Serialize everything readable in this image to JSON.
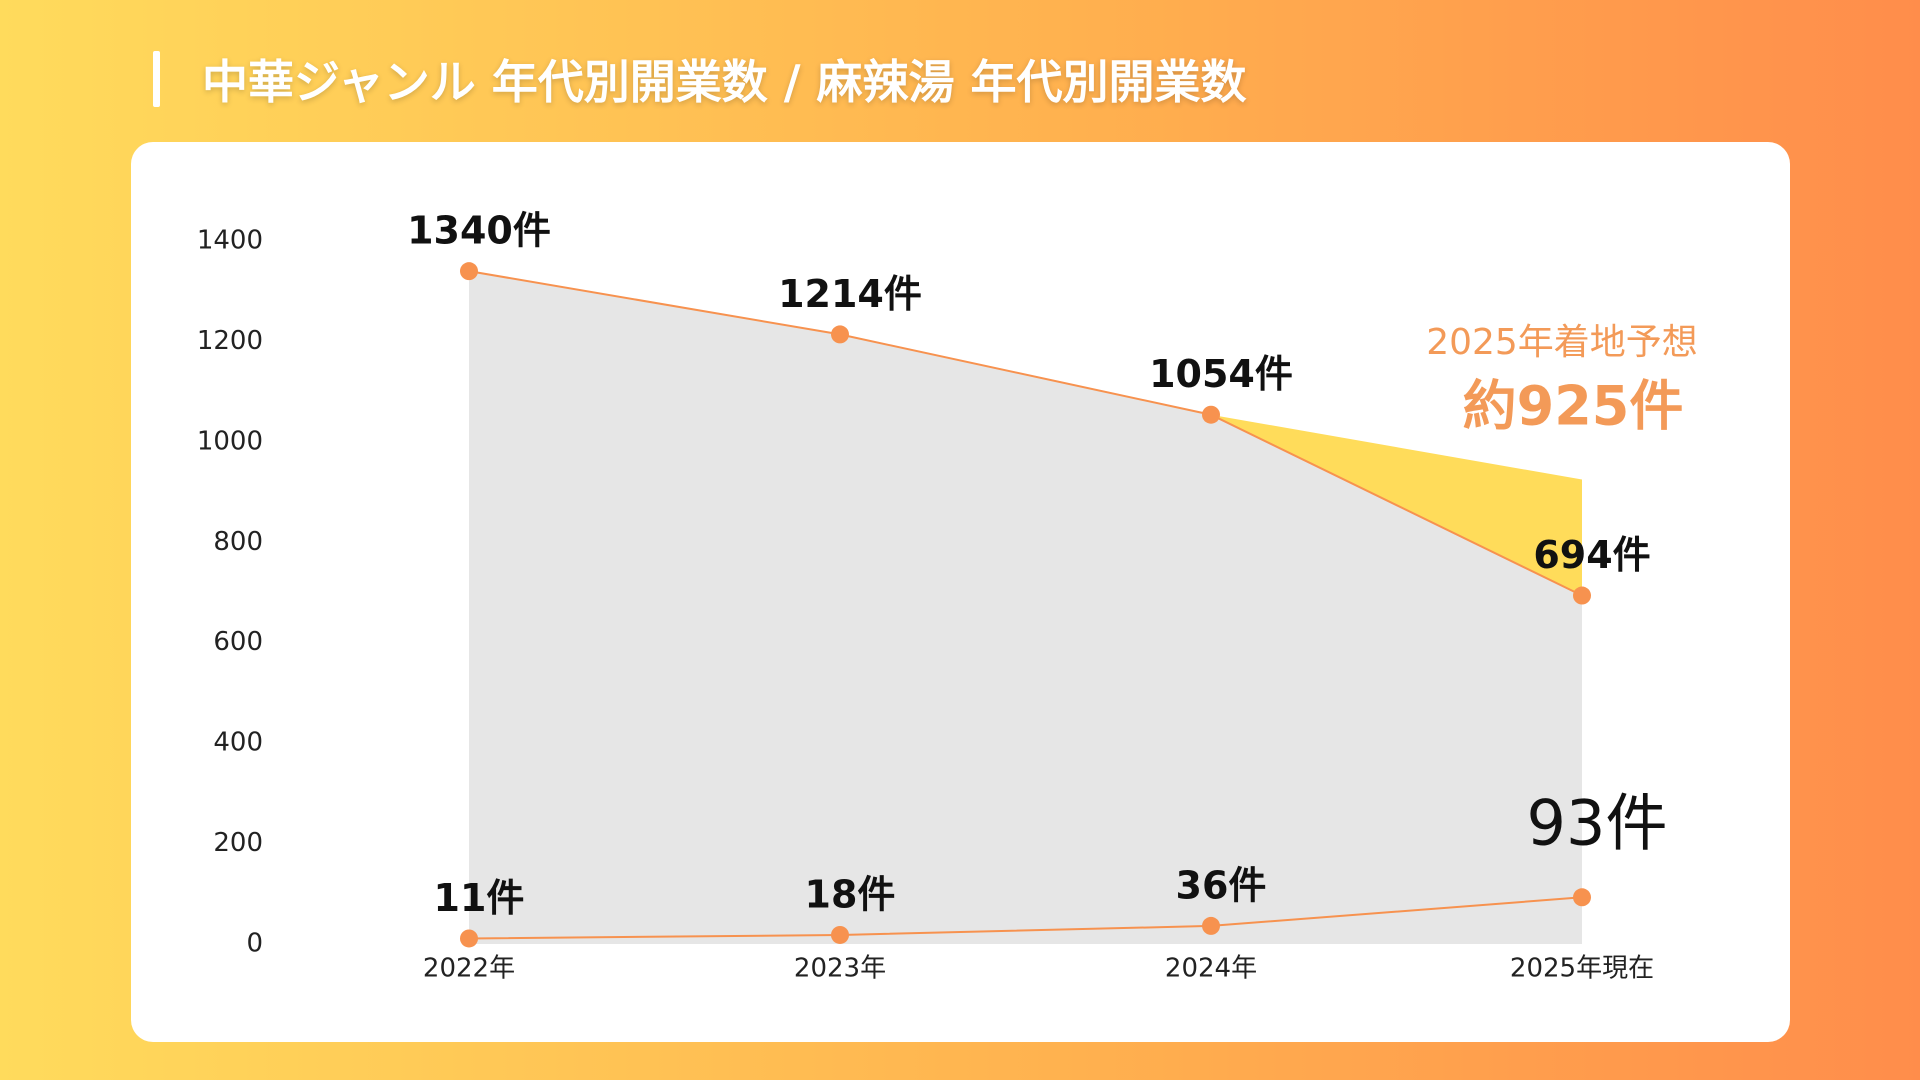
{
  "chart_data": {
    "type": "line",
    "title": "中華ジャンル 年代別開業数 / 麻辣湯 年代別開業数",
    "categories": [
      "2022年",
      "2023年",
      "2024年",
      "2025年現在"
    ],
    "ylim": [
      0,
      1400
    ],
    "yticks": [
      0,
      200,
      400,
      600,
      800,
      1000,
      1200,
      1400
    ],
    "grid": false,
    "area_color": "#e6e6e6",
    "series": [
      {
        "name": "中華ジャンル",
        "color": "#f7924f",
        "values": [
          1340,
          1214,
          1054,
          694
        ],
        "value_labels": [
          "1340件",
          "1214件",
          "1054件",
          "694件"
        ]
      },
      {
        "name": "麻辣湯",
        "color": "#f7924f",
        "values": [
          11,
          18,
          36,
          93
        ],
        "value_labels": [
          "11件",
          "18件",
          "36件",
          "93件"
        ],
        "last_label_color": "#ee3535"
      }
    ],
    "forecast": {
      "color": "#ffdc5a",
      "values": [
        null,
        null,
        1054,
        925
      ],
      "title": "2025年着地予想",
      "value_labels": [
        null,
        null,
        null,
        "約925件"
      ],
      "label_color": "#f39a58"
    }
  }
}
